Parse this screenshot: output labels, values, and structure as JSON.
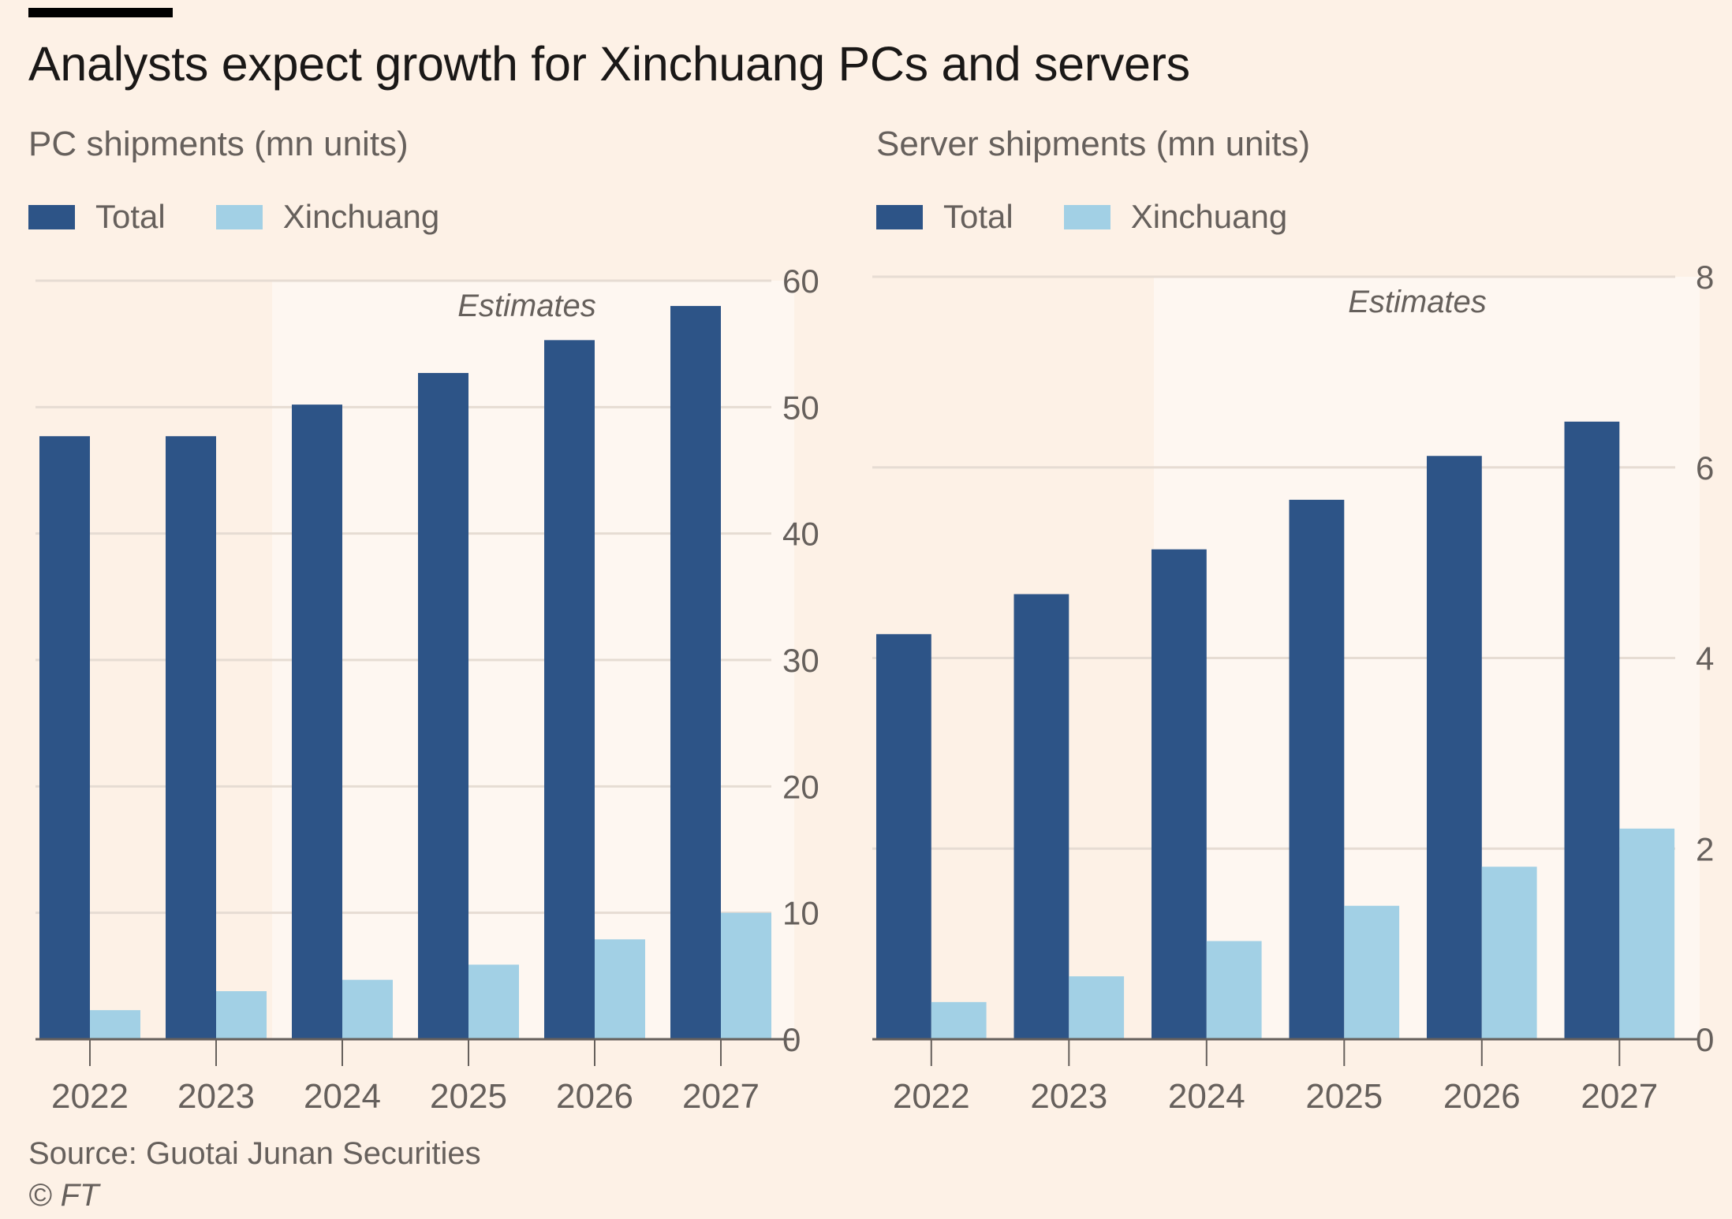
{
  "title": "Analysts expect growth for Xinchuang PCs and servers",
  "source": "Source: Guotai Junan Securities",
  "copyright": "© FT",
  "colors": {
    "background": "#fdf1e6",
    "estimate_band": "#fef7f1",
    "total": "#2d5487",
    "xinchuang": "#a2d0e5",
    "grid": "#e6dcd3",
    "axis": "#66605c"
  },
  "chart_data": [
    {
      "type": "bar",
      "subtitle": "PC shipments (mn units)",
      "categories": [
        "2022",
        "2023",
        "2024",
        "2025",
        "2026",
        "2027"
      ],
      "estimates_label": "Estimates",
      "estimates_from": "2024",
      "ylim": [
        0,
        60
      ],
      "yticks": [
        0,
        10,
        20,
        30,
        40,
        50,
        60
      ],
      "y_axis_position": "right",
      "grid": true,
      "legend_position": "top-left",
      "series": [
        {
          "name": "Total",
          "values": [
            47.7,
            47.7,
            50.2,
            52.7,
            55.3,
            58.0
          ]
        },
        {
          "name": "Xinchuang",
          "values": [
            2.3,
            3.8,
            4.7,
            5.9,
            7.9,
            10.0
          ]
        }
      ]
    },
    {
      "type": "bar",
      "subtitle": "Server shipments (mn units)",
      "categories": [
        "2022",
        "2023",
        "2024",
        "2025",
        "2026",
        "2027"
      ],
      "estimates_label": "Estimates",
      "estimates_from": "2024",
      "ylim": [
        0,
        8
      ],
      "yticks": [
        0,
        2,
        4,
        6,
        8
      ],
      "y_axis_position": "right",
      "grid": true,
      "legend_position": "top-left",
      "series": [
        {
          "name": "Total",
          "values": [
            4.25,
            4.67,
            5.14,
            5.66,
            6.12,
            6.48
          ]
        },
        {
          "name": "Xinchuang",
          "values": [
            0.39,
            0.66,
            1.03,
            1.4,
            1.81,
            2.21
          ]
        }
      ]
    }
  ]
}
